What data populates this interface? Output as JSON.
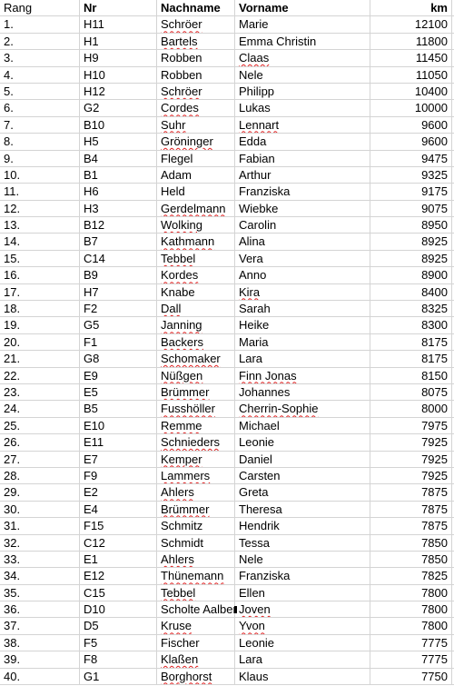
{
  "header": {
    "rang": "Rang",
    "nr": "Nr",
    "nachname": "Nachname",
    "vorname": "Vorname",
    "km": "km"
  },
  "rows": [
    {
      "rang": "1.",
      "nr": "H11",
      "nachname": "Schröer",
      "vorname": "Marie",
      "km": "12100",
      "sq_n": true,
      "sq_v": false
    },
    {
      "rang": "2.",
      "nr": "H1",
      "nachname": "Bartels",
      "vorname": "Emma Christin",
      "km": "11800",
      "sq_n": true,
      "sq_v": false
    },
    {
      "rang": "3.",
      "nr": "H9",
      "nachname": "Robben",
      "vorname": "Claas",
      "km": "11450",
      "sq_n": false,
      "sq_v": true
    },
    {
      "rang": "4.",
      "nr": "H10",
      "nachname": "Robben",
      "vorname": "Nele",
      "km": "11050",
      "sq_n": false,
      "sq_v": false
    },
    {
      "rang": "5.",
      "nr": "H12",
      "nachname": "Schröer",
      "vorname": "Philipp",
      "km": "10400",
      "sq_n": true,
      "sq_v": false
    },
    {
      "rang": "6.",
      "nr": "G2",
      "nachname": "Cordes",
      "vorname": "Lukas",
      "km": "10000",
      "sq_n": true,
      "sq_v": false
    },
    {
      "rang": "7.",
      "nr": "B10",
      "nachname": "Suhr",
      "vorname": "Lennart",
      "km": "9600",
      "sq_n": true,
      "sq_v": true
    },
    {
      "rang": "8.",
      "nr": "H5",
      "nachname": "Gröninger",
      "vorname": "Edda",
      "km": "9600",
      "sq_n": true,
      "sq_v": false
    },
    {
      "rang": "9.",
      "nr": "B4",
      "nachname": "Flegel",
      "vorname": "Fabian",
      "km": "9475",
      "sq_n": false,
      "sq_v": false
    },
    {
      "rang": "10.",
      "nr": "B1",
      "nachname": "Adam",
      "vorname": "Arthur",
      "km": "9325",
      "sq_n": false,
      "sq_v": false
    },
    {
      "rang": "11.",
      "nr": "H6",
      "nachname": "Held",
      "vorname": "Franziska",
      "km": "9175",
      "sq_n": false,
      "sq_v": false
    },
    {
      "rang": "12.",
      "nr": "H3",
      "nachname": "Gerdelmann",
      "vorname": "Wiebke",
      "km": "9075",
      "sq_n": true,
      "sq_v": false
    },
    {
      "rang": "13.",
      "nr": "B12",
      "nachname": "Wolking",
      "vorname": "Carolin",
      "km": "8950",
      "sq_n": true,
      "sq_v": false
    },
    {
      "rang": "14.",
      "nr": "B7",
      "nachname": "Kathmann",
      "vorname": "Alina",
      "km": "8925",
      "sq_n": true,
      "sq_v": false
    },
    {
      "rang": "15.",
      "nr": "C14",
      "nachname": "Tebbel",
      "vorname": "Vera",
      "km": "8925",
      "sq_n": true,
      "sq_v": false
    },
    {
      "rang": "16.",
      "nr": "B9",
      "nachname": "Kordes",
      "vorname": "Anno",
      "km": "8900",
      "sq_n": true,
      "sq_v": false
    },
    {
      "rang": "17.",
      "nr": "H7",
      "nachname": "Knabe",
      "vorname": "Kira",
      "km": "8400",
      "sq_n": false,
      "sq_v": true
    },
    {
      "rang": "18.",
      "nr": "F2",
      "nachname": "Dall",
      "vorname": "Sarah",
      "km": "8325",
      "sq_n": true,
      "sq_v": false
    },
    {
      "rang": "19.",
      "nr": "G5",
      "nachname": "Janning",
      "vorname": "Heike",
      "km": "8300",
      "sq_n": true,
      "sq_v": false
    },
    {
      "rang": "20.",
      "nr": "F1",
      "nachname": "Backers",
      "vorname": "Maria",
      "km": "8175",
      "sq_n": true,
      "sq_v": false
    },
    {
      "rang": "21.",
      "nr": "G8",
      "nachname": "Schomaker",
      "vorname": "Lara",
      "km": "8175",
      "sq_n": true,
      "sq_v": false
    },
    {
      "rang": "22.",
      "nr": "E9",
      "nachname": "Nüßgen",
      "vorname": "Finn Jonas",
      "km": "8150",
      "sq_n": true,
      "sq_v": true
    },
    {
      "rang": "23.",
      "nr": "E5",
      "nachname": "Brümmer",
      "vorname": "Johannes",
      "km": "8075",
      "sq_n": true,
      "sq_v": false
    },
    {
      "rang": "24.",
      "nr": "B5",
      "nachname": "Fusshöller",
      "vorname": "Cherrin-Sophie",
      "km": "8000",
      "sq_n": true,
      "sq_v": true
    },
    {
      "rang": "25.",
      "nr": "E10",
      "nachname": "Remme",
      "vorname": "Michael",
      "km": "7975",
      "sq_n": true,
      "sq_v": false
    },
    {
      "rang": "26.",
      "nr": "E11",
      "nachname": "Schnieders",
      "vorname": "Leonie",
      "km": "7925",
      "sq_n": true,
      "sq_v": false
    },
    {
      "rang": "27.",
      "nr": "E7",
      "nachname": "Kemper",
      "vorname": "Daniel",
      "km": "7925",
      "sq_n": true,
      "sq_v": false
    },
    {
      "rang": "28.",
      "nr": "F9",
      "nachname": "Lammers",
      "vorname": "Carsten",
      "km": "7925",
      "sq_n": true,
      "sq_v": false
    },
    {
      "rang": "29.",
      "nr": "E2",
      "nachname": "Ahlers",
      "vorname": "Greta",
      "km": "7875",
      "sq_n": true,
      "sq_v": false
    },
    {
      "rang": "30.",
      "nr": "E4",
      "nachname": "Brümmer",
      "vorname": "Theresa",
      "km": "7875",
      "sq_n": true,
      "sq_v": false
    },
    {
      "rang": "31.",
      "nr": "F15",
      "nachname": "Schmitz",
      "vorname": "Hendrik",
      "km": "7875",
      "sq_n": false,
      "sq_v": false
    },
    {
      "rang": "32.",
      "nr": "C12",
      "nachname": "Schmidt",
      "vorname": "Tessa",
      "km": "7850",
      "sq_n": false,
      "sq_v": false
    },
    {
      "rang": "33.",
      "nr": "E1",
      "nachname": "Ahlers",
      "vorname": "Nele",
      "km": "7850",
      "sq_n": true,
      "sq_v": false
    },
    {
      "rang": "34.",
      "nr": "E12",
      "nachname": "Thünemann",
      "vorname": "Franziska",
      "km": "7825",
      "sq_n": true,
      "sq_v": false
    },
    {
      "rang": "35.",
      "nr": "C15",
      "nachname": "Tebbel",
      "vorname": "Ellen",
      "km": "7800",
      "sq_n": true,
      "sq_v": false
    },
    {
      "rang": "36.",
      "nr": "D10",
      "nachname": "Scholte Aalbers",
      "vorname": "Joven",
      "km": "7800",
      "sq_n": false,
      "sq_v": true,
      "truncated": true
    },
    {
      "rang": "37.",
      "nr": "D5",
      "nachname": "Kruse",
      "vorname": "Yvon",
      "km": "7800",
      "sq_n": true,
      "sq_v": true
    },
    {
      "rang": "38.",
      "nr": "F5",
      "nachname": "Fischer",
      "vorname": "Leonie",
      "km": "7775",
      "sq_n": false,
      "sq_v": false
    },
    {
      "rang": "39.",
      "nr": "F8",
      "nachname": "Klaßen",
      "vorname": "Lara",
      "km": "7775",
      "sq_n": true,
      "sq_v": false
    },
    {
      "rang": "40.",
      "nr": "G1",
      "nachname": "Borghorst",
      "vorname": "Klaus",
      "km": "7750",
      "sq_n": true,
      "sq_v": false
    }
  ]
}
